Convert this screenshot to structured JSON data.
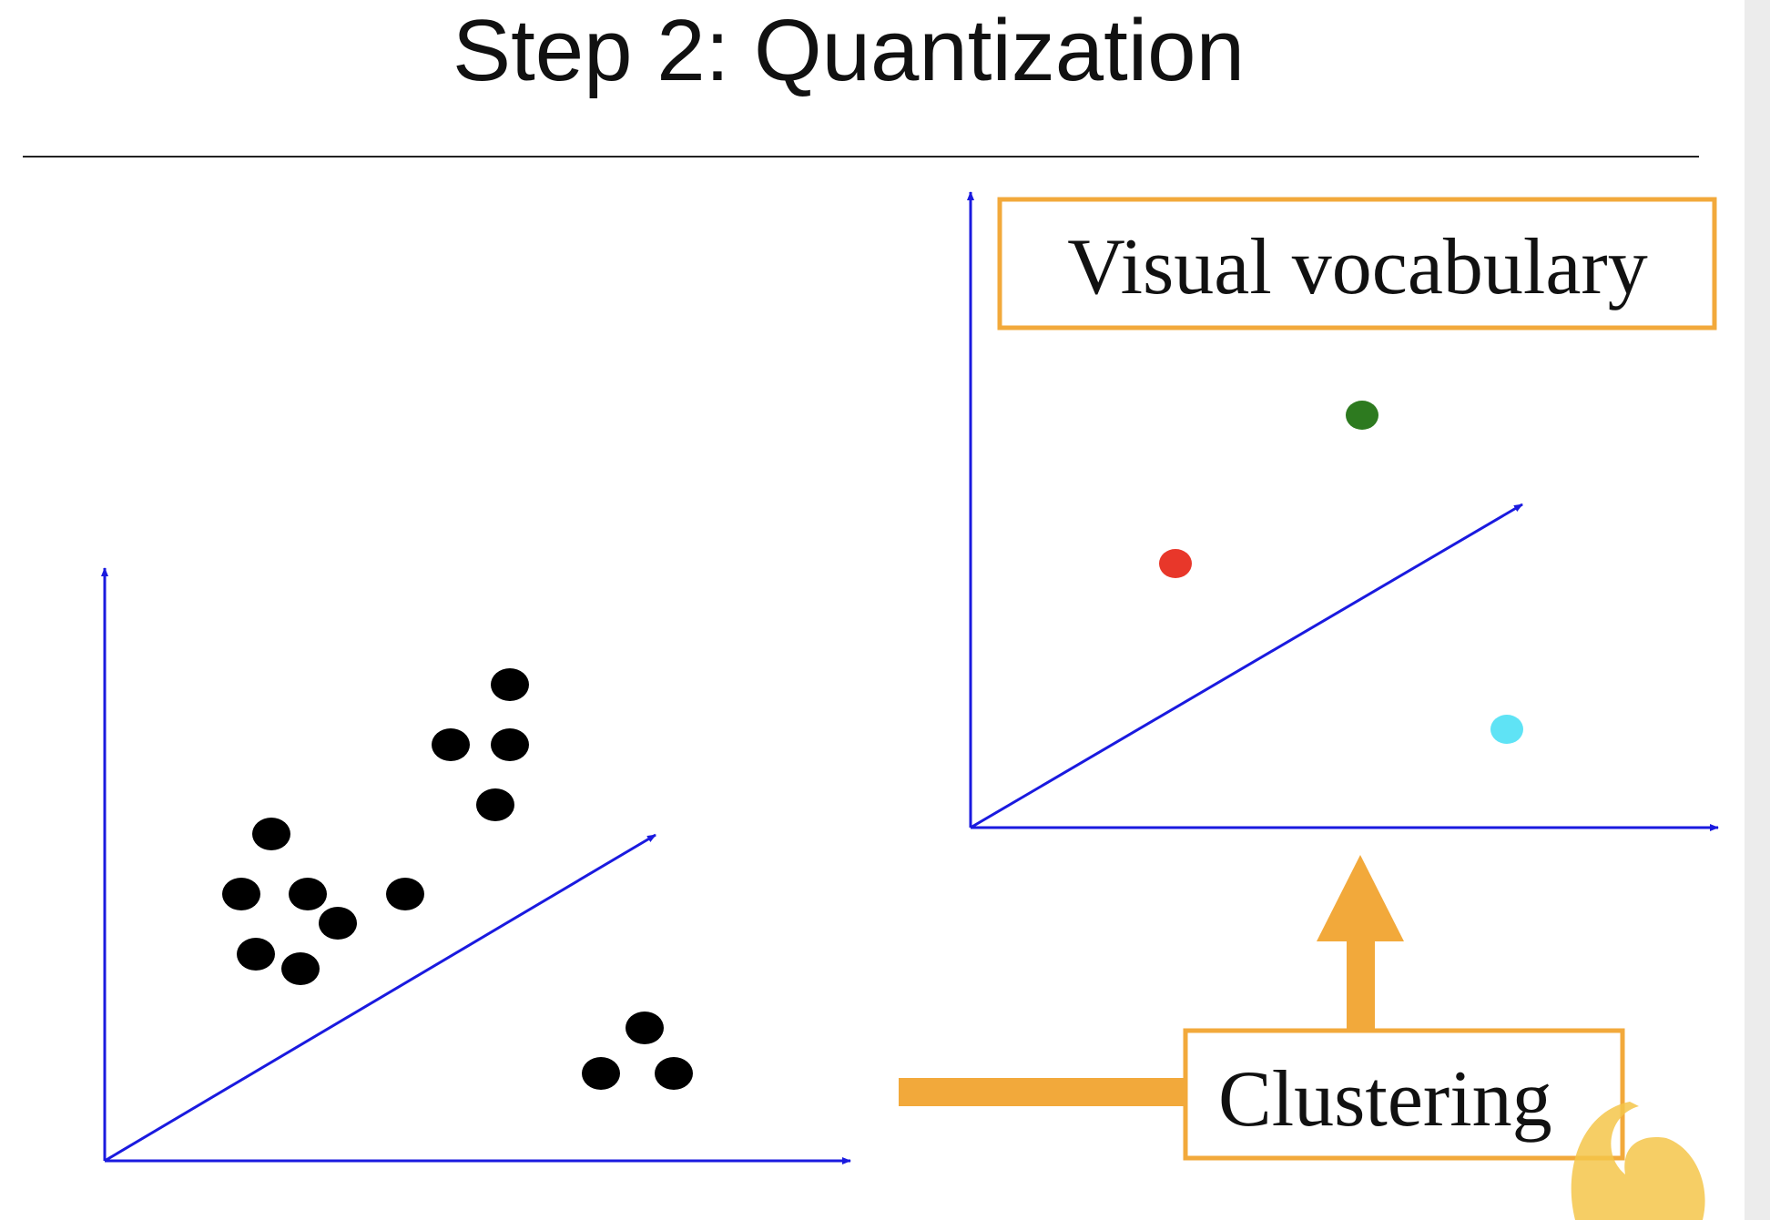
{
  "title": "Step 2: Quantization",
  "vocabulary_label": "Visual vocabulary",
  "clustering_label": "Clustering"
}
